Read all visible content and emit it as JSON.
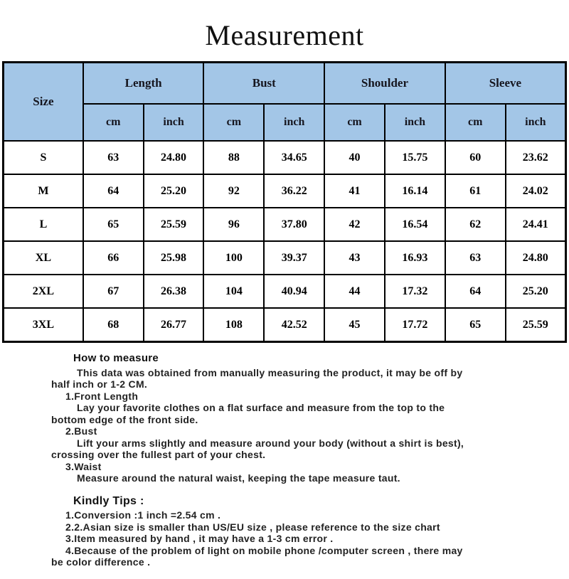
{
  "page_title": "Measurement",
  "table": {
    "corner_header": "Size",
    "group_headers": [
      "Length",
      "Bust",
      "Shoulder",
      "Sleeve"
    ],
    "unit_headers": [
      "cm",
      "inch"
    ],
    "rows": [
      {
        "size": "S",
        "values": [
          "63",
          "24.80",
          "88",
          "34.65",
          "40",
          "15.75",
          "60",
          "23.62"
        ]
      },
      {
        "size": "M",
        "values": [
          "64",
          "25.20",
          "92",
          "36.22",
          "41",
          "16.14",
          "61",
          "24.02"
        ]
      },
      {
        "size": "L",
        "values": [
          "65",
          "25.59",
          "96",
          "37.80",
          "42",
          "16.54",
          "62",
          "24.41"
        ]
      },
      {
        "size": "XL",
        "values": [
          "66",
          "25.98",
          "100",
          "39.37",
          "43",
          "16.93",
          "63",
          "24.80"
        ]
      },
      {
        "size": "2XL",
        "values": [
          "67",
          "26.38",
          "104",
          "40.94",
          "44",
          "17.32",
          "64",
          "25.20"
        ]
      },
      {
        "size": "3XL",
        "values": [
          "68",
          "26.77",
          "108",
          "42.52",
          "45",
          "17.72",
          "65",
          "25.59"
        ]
      }
    ]
  },
  "how_to_measure": {
    "heading": "How to measure",
    "lines": [
      "This data was obtained from manually measuring the product, it may be off by",
      "half inch or 1-2 CM.",
      "1.Front Length",
      "Lay your favorite clothes on a flat surface and measure from the top to the",
      "bottom edge of the front side.",
      "2.Bust",
      "Lift your arms slightly and measure around your body (without a shirt is best),",
      "crossing over the fullest part of your chest.",
      "3.Waist",
      "Measure around the natural waist, keeping the tape measure taut."
    ]
  },
  "kindly_tips": {
    "heading": "Kindly Tips :",
    "lines": [
      "1.Conversion :1 inch =2.54 cm .",
      "2.2.Asian size is smaller than US/EU size , please reference to the size chart",
      "3.Item measured by hand , it may have a 1-3 cm error .",
      "4.Because of the problem of light on mobile phone /computer screen , there may",
      "be  color difference ."
    ]
  },
  "colors": {
    "header_bg": "#a3c6e7",
    "header_text": "#16161f",
    "border": "#000000",
    "body_text": "#222222"
  }
}
